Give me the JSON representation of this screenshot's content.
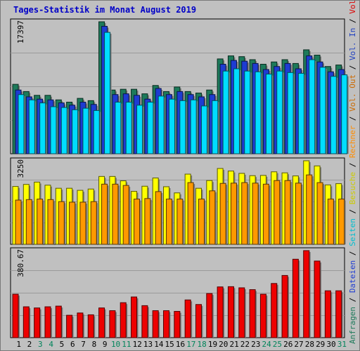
{
  "title": "Tages-Statistik im Monat August 2019",
  "chart_data": [
    {
      "type": "bar",
      "categories": [
        "1",
        "2",
        "3",
        "4",
        "5",
        "6",
        "7",
        "8",
        "9",
        "10",
        "11",
        "12",
        "13",
        "14",
        "15",
        "16",
        "17",
        "18",
        "19",
        "20",
        "21",
        "22",
        "23",
        "24",
        "25",
        "26",
        "27",
        "28",
        "29",
        "30",
        "31"
      ],
      "weekend_days": [
        "3",
        "4",
        "10",
        "11",
        "17",
        "18",
        "24",
        "25",
        "31"
      ],
      "ytick": "17397",
      "ymax": 17397,
      "series": [
        {
          "name": "Anfragen",
          "color": "#1d7a5a",
          "values": [
            9150,
            8200,
            7700,
            7700,
            7100,
            6800,
            7300,
            7000,
            17397,
            8400,
            8500,
            8500,
            7900,
            9000,
            8200,
            8800,
            8200,
            8000,
            8400,
            12500,
            12900,
            12800,
            12400,
            11800,
            12100,
            12400,
            11900,
            13700,
            13000,
            11500,
            11700
          ]
        },
        {
          "name": "Dateien",
          "color": "#1e3cd2",
          "values": [
            8400,
            7500,
            7200,
            7100,
            6700,
            6400,
            6800,
            6500,
            16800,
            7800,
            7900,
            7700,
            7200,
            8600,
            7800,
            8200,
            7800,
            7500,
            7800,
            11800,
            12300,
            12200,
            11900,
            11100,
            11500,
            11900,
            11200,
            12900,
            12100,
            10800,
            11100
          ]
        },
        {
          "name": "Seiten",
          "color": "#00ddff",
          "values": [
            7800,
            7100,
            6700,
            6200,
            6100,
            5800,
            6000,
            5700,
            16000,
            6800,
            6800,
            6400,
            6800,
            7600,
            7200,
            7000,
            7100,
            6300,
            7000,
            10900,
            11200,
            10900,
            10800,
            10500,
            10900,
            10700,
            10600,
            12400,
            11400,
            10200,
            10400
          ]
        }
      ]
    },
    {
      "type": "bar",
      "categories": [
        "1",
        "2",
        "3",
        "4",
        "5",
        "6",
        "7",
        "8",
        "9",
        "10",
        "11",
        "12",
        "13",
        "14",
        "15",
        "16",
        "17",
        "18",
        "19",
        "20",
        "21",
        "22",
        "23",
        "24",
        "25",
        "26",
        "27",
        "28",
        "29",
        "30",
        "31"
      ],
      "ytick": "3250",
      "ymax": 3250,
      "series": [
        {
          "name": "Besuche",
          "color": "#ffff00",
          "values": [
            2250,
            2330,
            2420,
            2300,
            2180,
            2180,
            2100,
            2150,
            2640,
            2640,
            2470,
            2060,
            2260,
            2580,
            2240,
            2000,
            2730,
            2180,
            2480,
            2950,
            2850,
            2760,
            2670,
            2680,
            2820,
            2780,
            2660,
            3250,
            3050,
            2310,
            2360
          ]
        },
        {
          "name": "Rechner",
          "color": "#ff9900",
          "values": [
            1720,
            1740,
            1760,
            1740,
            1660,
            1640,
            1640,
            1660,
            2340,
            2340,
            2290,
            1760,
            1780,
            2050,
            1760,
            1760,
            2400,
            1760,
            2080,
            2370,
            2380,
            2400,
            2380,
            2340,
            2480,
            2480,
            2380,
            2700,
            2400,
            1760,
            1760
          ]
        }
      ]
    },
    {
      "type": "bar",
      "categories": [
        "1",
        "2",
        "3",
        "4",
        "5",
        "6",
        "7",
        "8",
        "9",
        "10",
        "11",
        "12",
        "13",
        "14",
        "15",
        "16",
        "17",
        "18",
        "19",
        "20",
        "21",
        "22",
        "23",
        "24",
        "25",
        "26",
        "27",
        "28",
        "29",
        "30",
        "31"
      ],
      "ytick": "380.67",
      "ymax": 380.67,
      "series": [
        {
          "name": "Volumen",
          "color": "#ee0000",
          "values": [
            190,
            135,
            130,
            135,
            138,
            98,
            108,
            100,
            130,
            118,
            153,
            178,
            140,
            118,
            118,
            115,
            165,
            145,
            193,
            222,
            223,
            218,
            210,
            190,
            237,
            272,
            343,
            380.67,
            335,
            205,
            205
          ]
        }
      ]
    }
  ],
  "legend_right": {
    "top": [
      {
        "label": "Anfragen",
        "color": "#1d7a5a"
      },
      {
        "label": " / ",
        "color": "#000000"
      },
      {
        "label": "Dateien",
        "color": "#1e3cd2"
      },
      {
        "label": " / ",
        "color": "#000000"
      },
      {
        "label": "Seiten",
        "color": "#00bfcf"
      },
      {
        "label": " / ",
        "color": "#000000"
      },
      {
        "label": "Besuche",
        "color": "#cccc00"
      },
      {
        "label": " / ",
        "color": "#000000"
      },
      {
        "label": "Rechner",
        "color": "#ff8c00"
      },
      {
        "label": " / ",
        "color": "#000000"
      },
      {
        "label": "Vol. Out",
        "color": "#cc6a00"
      },
      {
        "label": " / ",
        "color": "#000000"
      },
      {
        "label": "Vol. In",
        "color": "#2040c0"
      },
      {
        "label": " / ",
        "color": "#000000"
      },
      {
        "label": "Volumen",
        "color": "#dd0000"
      }
    ]
  },
  "colors": {
    "weekday": "#000000",
    "weekend": "#00845a",
    "title": "#0000c8"
  }
}
